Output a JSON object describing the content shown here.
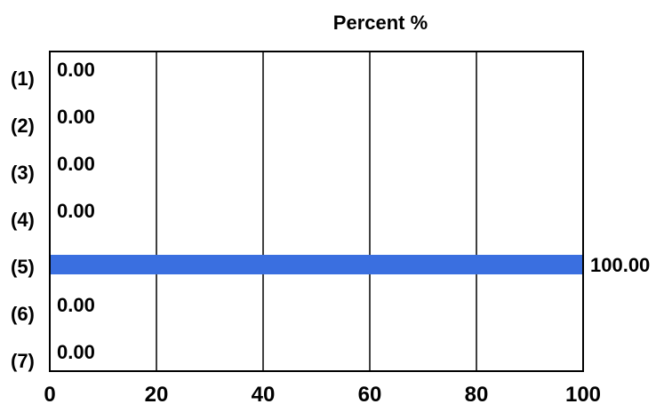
{
  "chart_data": {
    "type": "bar",
    "orientation": "horizontal",
    "title": "Percent %",
    "categories": [
      "(1)",
      "(2)",
      "(3)",
      "(4)",
      "(5)",
      "(6)",
      "(7)"
    ],
    "values": [
      0.0,
      0.0,
      0.0,
      0.0,
      100.0,
      0.0,
      0.0
    ],
    "value_labels": [
      "0.00",
      "0.00",
      "0.00",
      "0.00",
      "100.00",
      "0.00",
      "0.00"
    ],
    "xlim": [
      0,
      100
    ],
    "xticks": [
      0,
      20,
      40,
      60,
      80,
      100
    ],
    "xtick_labels": [
      "0",
      "20",
      "40",
      "60",
      "80",
      "100"
    ],
    "grid": "vertical",
    "bar_color": "#3a6fe0",
    "xlabel": "",
    "ylabel": ""
  }
}
